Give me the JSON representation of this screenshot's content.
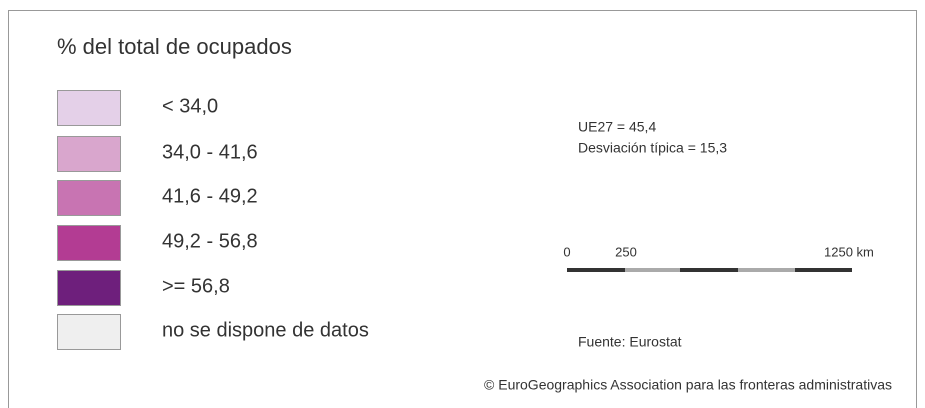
{
  "title": "% del total de ocupados",
  "legend": [
    {
      "label": "< 34,0",
      "color": "#e4d0e8"
    },
    {
      "label": "34,0 - 41,6",
      "color": "#d9a6cd"
    },
    {
      "label": "41,6 - 49,2",
      "color": "#c874b2"
    },
    {
      "label": "49,2 - 56,8",
      "color": "#b33c93"
    },
    {
      "label": ">= 56,8",
      "color": "#6e1f7c"
    },
    {
      "label": "no se dispone de datos",
      "color": "#efefef"
    }
  ],
  "stats": [
    "UE27 = 45,4",
    "Desviación típica = 15,3"
  ],
  "scale": [
    "0",
    "250",
    "1250 km"
  ],
  "source": "Fuente: Eurostat",
  "copyright": "© EuroGeographics Association para las fronteras administrativas"
}
